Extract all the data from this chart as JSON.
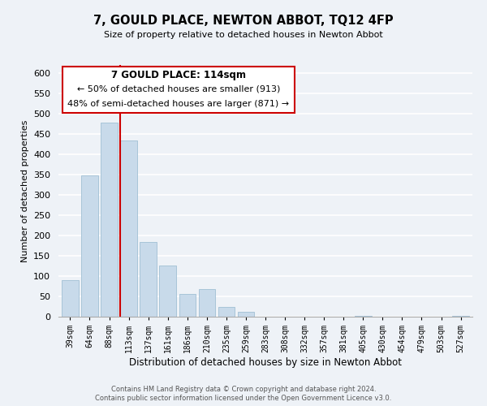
{
  "title": "7, GOULD PLACE, NEWTON ABBOT, TQ12 4FP",
  "subtitle": "Size of property relative to detached houses in Newton Abbot",
  "xlabel": "Distribution of detached houses by size in Newton Abbot",
  "ylabel": "Number of detached properties",
  "bar_color": "#c8daea",
  "bar_edge_color": "#a8c4d8",
  "vline_color": "#cc0000",
  "categories": [
    "39sqm",
    "64sqm",
    "88sqm",
    "113sqm",
    "137sqm",
    "161sqm",
    "186sqm",
    "210sqm",
    "235sqm",
    "259sqm",
    "283sqm",
    "308sqm",
    "332sqm",
    "357sqm",
    "381sqm",
    "405sqm",
    "430sqm",
    "454sqm",
    "479sqm",
    "503sqm",
    "527sqm"
  ],
  "values": [
    90,
    348,
    478,
    435,
    185,
    126,
    57,
    68,
    25,
    12,
    0,
    0,
    0,
    0,
    0,
    3,
    0,
    0,
    0,
    0,
    3
  ],
  "ylim": [
    0,
    620
  ],
  "yticks": [
    0,
    50,
    100,
    150,
    200,
    250,
    300,
    350,
    400,
    450,
    500,
    550,
    600
  ],
  "vline_index": 3,
  "annotation_text_line1": "7 GOULD PLACE: 114sqm",
  "annotation_text_line2": "← 50% of detached houses are smaller (913)",
  "annotation_text_line3": "48% of semi-detached houses are larger (871) →",
  "footer_line1": "Contains HM Land Registry data © Crown copyright and database right 2024.",
  "footer_line2": "Contains public sector information licensed under the Open Government Licence v3.0.",
  "background_color": "#eef2f7",
  "grid_color": "#ffffff"
}
